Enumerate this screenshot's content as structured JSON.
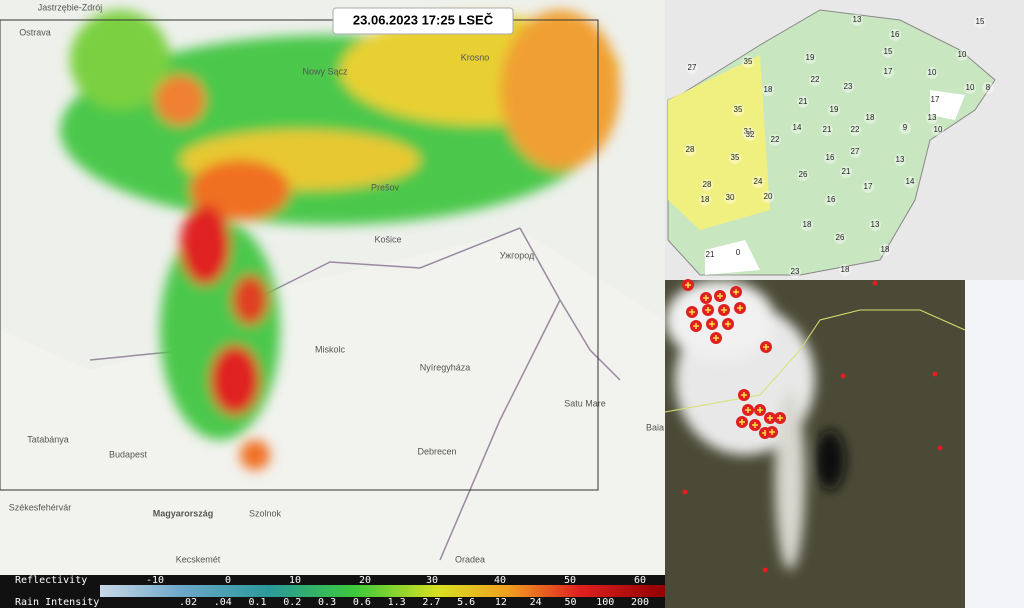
{
  "radar": {
    "timestamp": "23.06.2023 17:25 LSEČ",
    "places": [
      "Jastrzębie-Zdrój",
      "Ostrava",
      "Nowy Sącz",
      "Krosno",
      "Prešov",
      "Košice",
      "Ужгород",
      "Miskolc",
      "Nyíregyháza",
      "Satu Mare",
      "Debrecen",
      "Budapest",
      "Tatabánya",
      "Székesfehérvár",
      "Magyarország",
      "Szolnok",
      "Kecskemét",
      "Oradea",
      "Baia"
    ]
  },
  "legend": {
    "reflectivity_label": "Reflectivity",
    "reflectivity_ticks": [
      "-10",
      "0",
      "10",
      "20",
      "30",
      "40",
      "50",
      "60"
    ],
    "rain_label": "Rain Intensity",
    "rain_ticks": [
      ".02",
      ".04",
      "0.1",
      "0.2",
      "0.3",
      "0.6",
      "1.3",
      "2.7",
      "5.6",
      "12",
      "24",
      "50",
      "100",
      "200"
    ]
  },
  "isotherm_map": {
    "labels": [
      "13",
      "15",
      "16",
      "15",
      "17",
      "10",
      "10",
      "10",
      "8",
      "17",
      "23",
      "19",
      "35",
      "27",
      "18",
      "22",
      "21",
      "19",
      "18",
      "13",
      "10",
      "31",
      "35",
      "32",
      "14",
      "21",
      "22",
      "9",
      "28",
      "35",
      "24",
      "20",
      "22",
      "26",
      "16",
      "21",
      "27",
      "13",
      "16",
      "17",
      "14",
      "28",
      "18",
      "30",
      "18",
      "26",
      "13",
      "18",
      "0",
      "21",
      "23",
      "18"
    ]
  }
}
